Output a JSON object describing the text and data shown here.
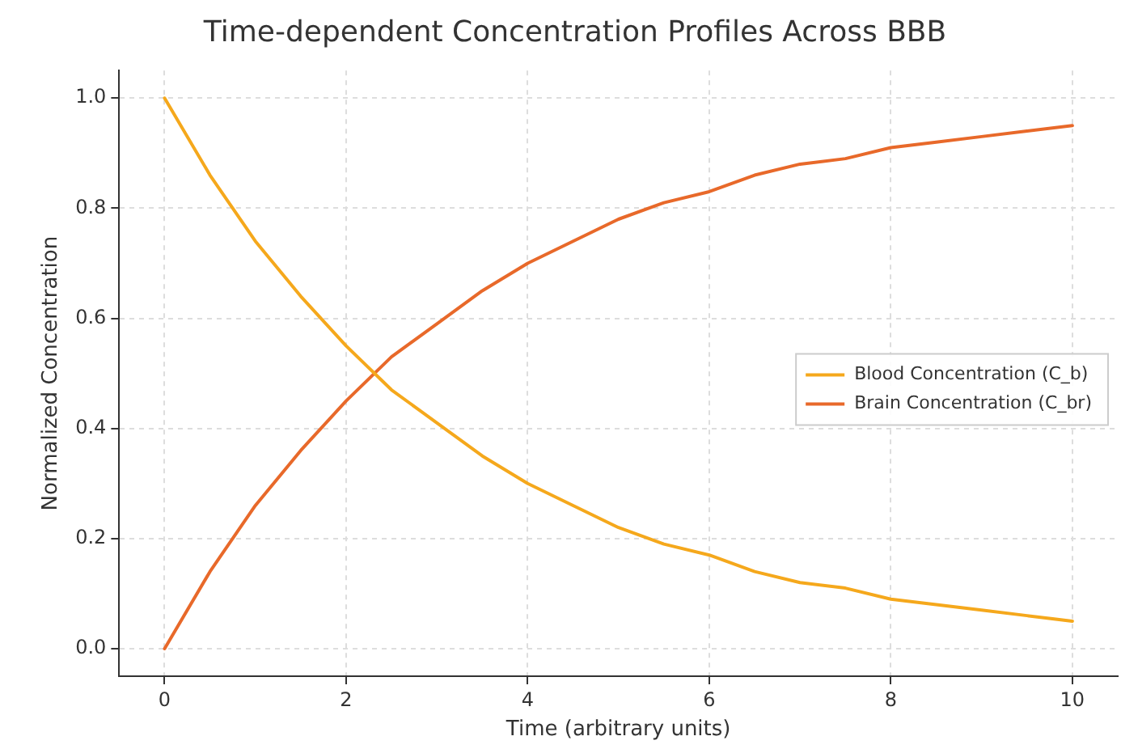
{
  "chart_data": {
    "type": "line",
    "title": "Time-dependent Concentration Profiles Across BBB",
    "xlabel": "Time (arbitrary units)",
    "ylabel": "Normalized Concentration",
    "x": [
      0,
      0.5,
      1,
      1.5,
      2,
      2.5,
      3,
      3.5,
      4,
      4.5,
      5,
      5.5,
      6,
      6.5,
      7,
      7.5,
      8,
      8.5,
      9,
      9.5,
      10
    ],
    "series": [
      {
        "name": "Blood Concentration (C_b)",
        "color": "#f5a81c",
        "values": [
          1,
          0.86,
          0.74,
          0.64,
          0.55,
          0.47,
          0.41,
          0.35,
          0.3,
          0.26,
          0.22,
          0.19,
          0.17,
          0.14,
          0.12,
          0.11,
          0.09,
          0.08,
          0.07,
          0.06,
          0.05
        ]
      },
      {
        "name": "Brain Concentration (C_br)",
        "color": "#e8692a",
        "values": [
          0,
          0.14,
          0.26,
          0.36,
          0.45,
          0.53,
          0.59,
          0.65,
          0.7,
          0.74,
          0.78,
          0.81,
          0.83,
          0.86,
          0.88,
          0.89,
          0.91,
          0.92,
          0.93,
          0.94,
          0.95
        ]
      }
    ],
    "xlim": [
      -0.5,
      10.5
    ],
    "xticks": [
      0,
      2,
      4,
      6,
      8,
      10
    ],
    "ylim": [
      -0.05,
      1.05
    ],
    "yticks": [
      {
        "value": 0,
        "label": "0.0"
      },
      0.2,
      0.4,
      0.6,
      0.8,
      {
        "value": 1,
        "label": "1.0"
      }
    ],
    "grid": true,
    "legend": "right",
    "marker": "none",
    "line_style": "solid"
  }
}
